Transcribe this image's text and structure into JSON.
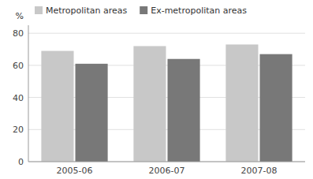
{
  "chart_data": {
    "type": "bar",
    "categories": [
      "2005-06",
      "2006-07",
      "2007-08"
    ],
    "series": [
      {
        "name": "Metropolitan areas",
        "color": "#c8c8c8",
        "values": [
          69,
          72,
          73
        ]
      },
      {
        "name": "Ex-metropolitan areas",
        "color": "#787878",
        "values": [
          61,
          64,
          67
        ]
      }
    ],
    "ylabel": "%",
    "ylim": [
      0,
      85
    ],
    "yticks": [
      0,
      20,
      40,
      60,
      80
    ],
    "grid": true,
    "legend": "upper left"
  }
}
